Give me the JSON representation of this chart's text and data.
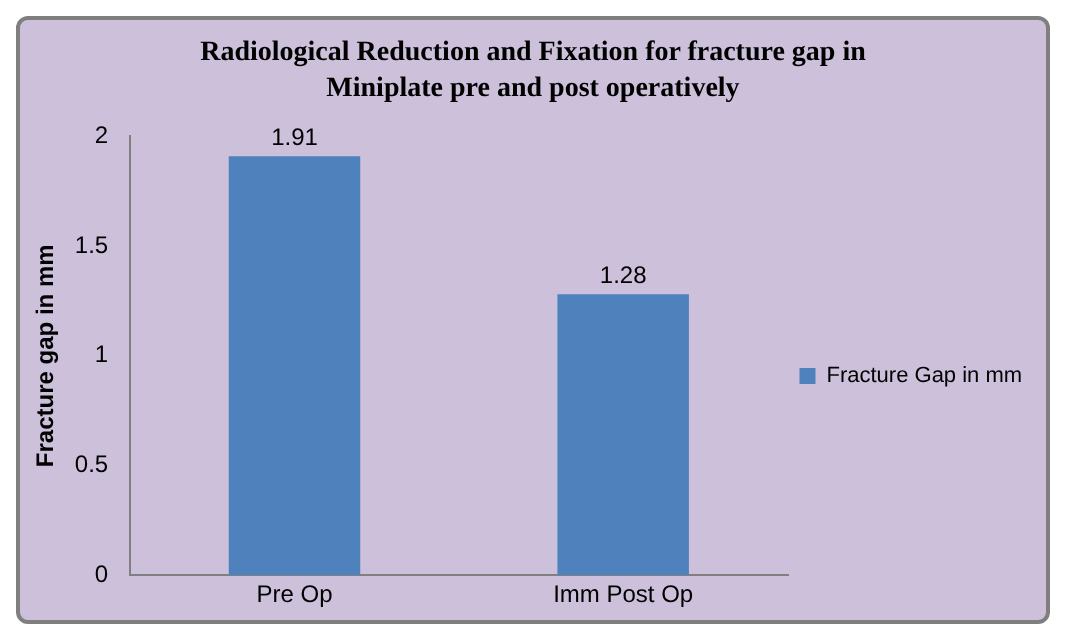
{
  "chart_data": {
    "type": "bar",
    "title": "Radiological Reduction and Fixation for fracture gap in Miniplate pre and post operatively",
    "ylabel": "Fracture gap in mm",
    "categories": [
      "Pre Op",
      "Imm Post Op"
    ],
    "series": [
      {
        "name": "Fracture Gap in mm",
        "color": "#4f81bd",
        "values": [
          1.91,
          1.28
        ]
      }
    ],
    "ylim": [
      0,
      2
    ],
    "yticks": [
      0,
      0.5,
      1,
      1.5,
      2
    ],
    "grid": false,
    "legend": "right",
    "data_labels": true
  }
}
